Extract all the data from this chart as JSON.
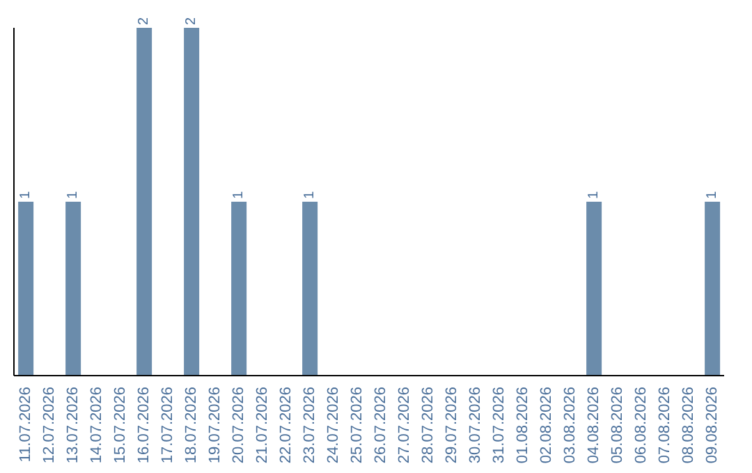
{
  "chart_data": {
    "type": "bar",
    "categories": [
      "11.07.2026",
      "12.07.2026",
      "13.07.2026",
      "14.07.2026",
      "15.07.2026",
      "16.07.2026",
      "17.07.2026",
      "18.07.2026",
      "19.07.2026",
      "20.07.2026",
      "21.07.2026",
      "22.07.2026",
      "23.07.2026",
      "24.07.2026",
      "25.07.2026",
      "26.07.2026",
      "27.07.2026",
      "28.07.2026",
      "29.07.2026",
      "30.07.2026",
      "31.07.2026",
      "01.08.2026",
      "02.08.2026",
      "03.08.2026",
      "04.08.2026",
      "05.08.2026",
      "06.08.2026",
      "07.08.2026",
      "08.08.2026",
      "09.08.2026"
    ],
    "values": [
      1,
      0,
      1,
      0,
      0,
      2,
      0,
      2,
      0,
      1,
      0,
      0,
      1,
      0,
      0,
      0,
      0,
      0,
      0,
      0,
      0,
      0,
      0,
      0,
      1,
      0,
      0,
      0,
      0,
      1
    ],
    "value_labels": [
      "1",
      null,
      "1",
      null,
      null,
      "2",
      null,
      "2",
      null,
      "1",
      null,
      null,
      "1",
      null,
      null,
      null,
      null,
      null,
      null,
      null,
      null,
      null,
      null,
      null,
      "1",
      null,
      null,
      null,
      null,
      "1"
    ],
    "color": "#6b8cab",
    "grid": false,
    "legend": false,
    "tick_labels": "x"
  }
}
